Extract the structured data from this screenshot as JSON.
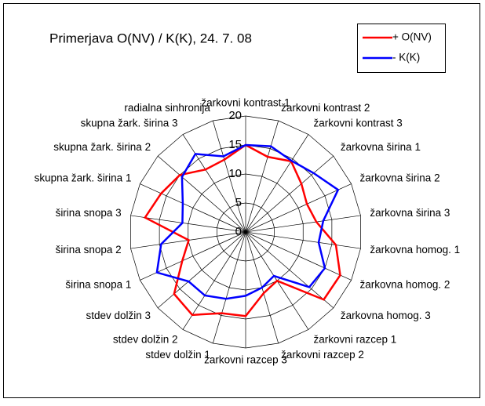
{
  "chart_data": {
    "type": "radar",
    "title": "Primerjava O(NV) / K(K), 24. 7. 08",
    "categories": [
      "žarkovni kontrast 1",
      "žarkovni kontrast 2",
      "žarkovni kontrast 3",
      "žarkovna širina 1",
      "žarkovna širina 2",
      "žarkovna širina 3",
      "žarkovna homog. 1",
      "žarkovna homog. 2",
      "žarkovna homog. 3",
      "žarkovni razcep 1",
      "žarkovni razcep 2",
      "žarkovni razcep 3",
      "stdev dolžin 1",
      "stdev dolžin 2",
      "stdev dolžin 3",
      "širina snopa 1",
      "širina snopa 2",
      "širina snopa 3",
      "skupna žark. širina 1",
      "skupna žark. širina 2",
      "skupna žark. širina 3",
      "radialna sinhronija"
    ],
    "series": [
      {
        "name": "+ O(NV)",
        "color": "#ff0000",
        "values": [
          15,
          13.5,
          14.5,
          12.7,
          11.6,
          12.3,
          15.7,
          17.9,
          17.8,
          10,
          11,
          14.5,
          14.6,
          17,
          16.3,
          12,
          9.9,
          17.5,
          16,
          15,
          12.8,
          13
        ]
      },
      {
        "name": "- K(K)",
        "color": "#0000ff",
        "values": [
          15,
          15.4,
          14.6,
          15.5,
          17.5,
          13.5,
          12.7,
          15,
          14.5,
          9,
          10,
          11,
          12,
          13,
          13,
          16.8,
          14.7,
          11,
          11.9,
          14.5,
          16,
          13.6
        ]
      }
    ],
    "ylim": [
      0,
      20
    ],
    "yticks": [
      0,
      5,
      10,
      15,
      20
    ],
    "grid": true,
    "legend": "top-right"
  }
}
